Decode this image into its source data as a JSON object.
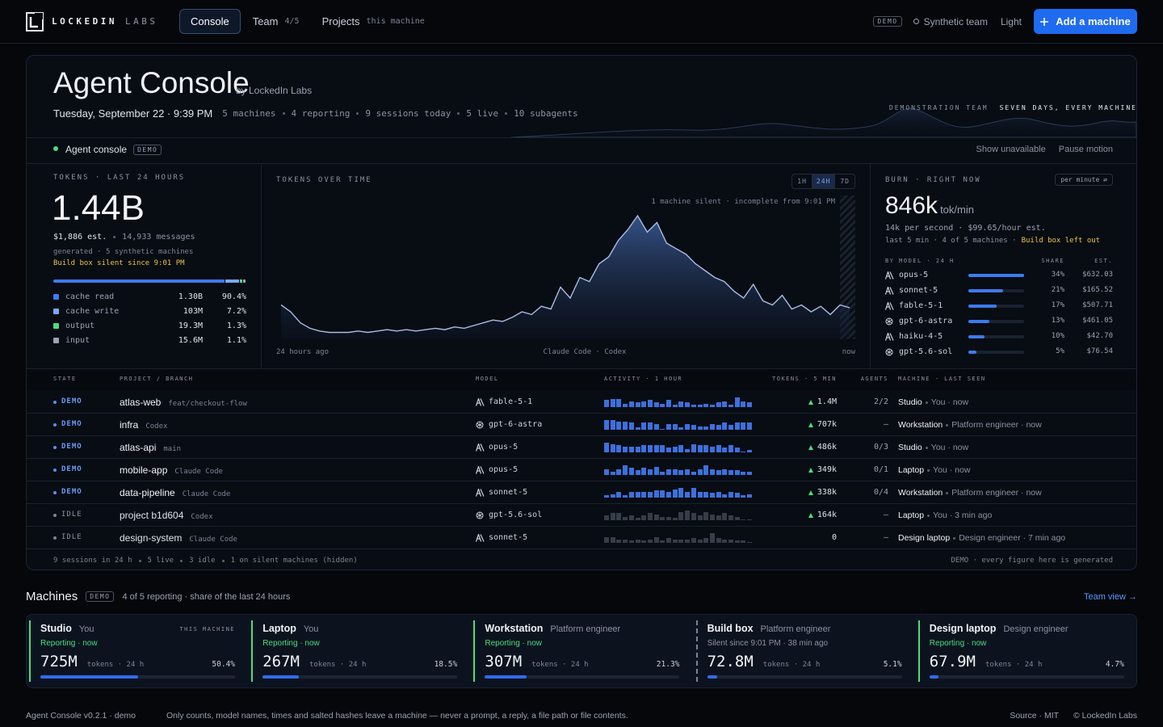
{
  "nav": {
    "brand": "LOCKEDIN",
    "brand_sub": "LABS",
    "tabs": [
      {
        "label": "Console",
        "active": true
      },
      {
        "label": "Team",
        "meta": "4/5"
      },
      {
        "label": "Projects",
        "meta": "this machine"
      }
    ],
    "badge": "DEMO",
    "team": "Synthetic team",
    "theme": "Light",
    "action": "Add a machine"
  },
  "header": {
    "title": "Agent Console",
    "by": "by LockedIn Labs",
    "date": "Tuesday, September 22 · 9:39 PM",
    "stats": [
      "5 machines",
      "4 reporting",
      "9 sessions today",
      "5 live",
      "10 subagents"
    ],
    "tag": "DEMONSTRATION TEAM",
    "tag_strong": "SEVEN DAYS, EVERY MACHINE"
  },
  "bar": {
    "label": "Agent console",
    "badge": "DEMO",
    "actions": [
      "Show unavailable",
      "Pause motion"
    ]
  },
  "tokens": {
    "heading": "TOKENS · LAST 24 HOURS",
    "total": "1.44B",
    "cost": "$1,886 est.",
    "messages": "14,933 messages",
    "generated": "generated · 5 synthetic machines",
    "warning": "Build box silent since 9:01 PM",
    "breakdown": [
      {
        "name": "cache read",
        "value": "1.30B",
        "share": 90.4,
        "share_label": "90.4%",
        "color": "#3b7bf0"
      },
      {
        "name": "cache write",
        "value": "103M",
        "share": 7.2,
        "share_label": "7.2%",
        "color": "#7aa8f5"
      },
      {
        "name": "output",
        "value": "19.3M",
        "share": 1.3,
        "share_label": "1.3%",
        "color": "#4ade80"
      },
      {
        "name": "input",
        "value": "15.6M",
        "share": 1.1,
        "share_label": "1.1%",
        "color": "#9aa3b2"
      }
    ]
  },
  "chart": {
    "heading": "TOKENS OVER TIME",
    "ranges": [
      {
        "label": "1H"
      },
      {
        "label": "24H",
        "active": true
      },
      {
        "label": "7D"
      }
    ],
    "note": "1 machine silent · incomplete from 9:01 PM",
    "x_start": "24 hours ago",
    "x_mid": "Claude Code · Codex",
    "x_end": "now",
    "values": [
      25,
      20,
      12,
      8,
      6,
      5,
      5,
      5,
      6,
      5,
      6,
      7,
      6,
      7,
      6,
      7,
      8,
      7,
      9,
      8,
      10,
      12,
      14,
      13,
      16,
      20,
      18,
      24,
      22,
      38,
      30,
      45,
      42,
      55,
      60,
      72,
      80,
      90,
      78,
      85,
      70,
      66,
      62,
      55,
      50,
      45,
      42,
      35,
      30,
      40,
      28,
      25,
      32,
      22,
      25,
      20,
      24,
      18,
      25,
      23
    ]
  },
  "burn": {
    "heading": "BURN · RIGHT NOW",
    "unit_select": "per minute ⇄",
    "rate": "846k",
    "unit": "tok/min",
    "line1": "14k per second · $99.65/hour est.",
    "line2": "last 5 min · 4 of 5 machines ·",
    "warning": "Build box left out",
    "col_model": "BY MODEL · 24 H",
    "col_share": "SHARE",
    "col_est": "EST.",
    "models": [
      {
        "name": "opus-5",
        "icon": "spark",
        "share": 34,
        "share_label": "34%",
        "est": "$632.03"
      },
      {
        "name": "sonnet-5",
        "icon": "spark",
        "share": 21,
        "share_label": "21%",
        "est": "$165.52"
      },
      {
        "name": "fable-5-1",
        "icon": "spark",
        "share": 17,
        "share_label": "17%",
        "est": "$507.71"
      },
      {
        "name": "gpt-6-astra",
        "icon": "knot",
        "share": 13,
        "share_label": "13%",
        "est": "$461.05"
      },
      {
        "name": "haiku-4-5",
        "icon": "spark",
        "share": 10,
        "share_label": "10%",
        "est": "$42.70"
      },
      {
        "name": "gpt-5.6-sol",
        "icon": "knot",
        "share": 5,
        "share_label": "5%",
        "est": "$76.54"
      }
    ]
  },
  "table": {
    "columns": [
      "STATE",
      "PROJECT / BRANCH",
      "MODEL",
      "ACTIVITY · 1 HOUR",
      "TOKENS · 5 MIN",
      "AGENTS",
      "MACHINE · LAST SEEN"
    ],
    "rows": [
      {
        "state": "DEMO",
        "live": true,
        "project": "atlas-web",
        "branch": "feat/checkout-flow",
        "model": "fable-5-1",
        "icon": "spark",
        "activity": [
          6,
          7,
          7,
          3,
          5,
          4,
          5,
          6,
          4,
          3,
          6,
          2,
          5,
          4,
          2,
          2,
          3,
          2,
          4,
          5,
          2,
          8,
          5,
          4
        ],
        "tokens": "1.4M",
        "up": true,
        "agents": "2/2",
        "machine": "Studio",
        "seen": "You · now"
      },
      {
        "state": "DEMO",
        "live": true,
        "project": "infra",
        "branch": "Codex",
        "model": "gpt-6-astra",
        "icon": "knot",
        "activity": [
          8,
          8,
          7,
          7,
          6,
          2,
          6,
          6,
          5,
          1,
          5,
          5,
          2,
          5,
          4,
          3,
          3,
          5,
          4,
          6,
          4,
          6,
          6,
          6
        ],
        "tokens": "707k",
        "up": true,
        "agents": "—",
        "machine": "Workstation",
        "seen": "Platform engineer · now"
      },
      {
        "state": "DEMO",
        "live": true,
        "project": "atlas-api",
        "branch": "main",
        "model": "opus-5",
        "icon": "spark",
        "activity": [
          8,
          7,
          6,
          5,
          5,
          5,
          6,
          6,
          6,
          6,
          4,
          5,
          6,
          3,
          7,
          6,
          6,
          5,
          6,
          4,
          6,
          4,
          1,
          2
        ],
        "tokens": "486k",
        "up": true,
        "agents": "0/3",
        "machine": "Studio",
        "seen": "You · now"
      },
      {
        "state": "DEMO",
        "live": true,
        "project": "mobile-app",
        "branch": "Claude Code",
        "model": "opus-5",
        "icon": "spark",
        "activity": [
          5,
          3,
          5,
          8,
          6,
          4,
          6,
          5,
          7,
          3,
          5,
          5,
          4,
          5,
          3,
          5,
          8,
          5,
          4,
          5,
          4,
          4,
          3,
          3
        ],
        "tokens": "349k",
        "up": true,
        "agents": "0/1",
        "machine": "Laptop",
        "seen": "You · now"
      },
      {
        "state": "DEMO",
        "live": true,
        "project": "data-pipeline",
        "branch": "Claude Code",
        "model": "sonnet-5",
        "icon": "spark",
        "activity": [
          2,
          3,
          5,
          2,
          5,
          5,
          5,
          5,
          6,
          6,
          5,
          7,
          8,
          5,
          8,
          5,
          5,
          4,
          5,
          3,
          5,
          4,
          2,
          3
        ],
        "tokens": "338k",
        "up": true,
        "agents": "0/4",
        "machine": "Workstation",
        "seen": "Platform engineer · now"
      },
      {
        "state": "IDLE",
        "live": false,
        "project": "project b1d604",
        "branch": "Codex",
        "model": "gpt-5.6-sol",
        "icon": "knot",
        "activity": [
          4,
          6,
          6,
          3,
          4,
          2,
          4,
          6,
          5,
          3,
          3,
          2,
          7,
          8,
          6,
          4,
          7,
          5,
          4,
          6,
          4,
          3,
          1,
          1
        ],
        "tokens": "164k",
        "up": true,
        "agents": "—",
        "machine": "Laptop",
        "seen": "You · 3 min ago"
      },
      {
        "state": "IDLE",
        "live": false,
        "project": "design-system",
        "branch": "Claude Code",
        "model": "sonnet-5",
        "icon": "spark",
        "activity": [
          5,
          5,
          3,
          3,
          2,
          3,
          2,
          3,
          5,
          2,
          4,
          3,
          3,
          3,
          4,
          3,
          4,
          8,
          4,
          3,
          3,
          2,
          2,
          1
        ],
        "tokens": "0",
        "up": false,
        "agents": "—",
        "machine": "Design laptop",
        "seen": "Design engineer · 7 min ago"
      }
    ],
    "footer": [
      "9 sessions in 24 h",
      "5 live",
      "3 idle",
      "1 on silent machines (hidden)"
    ],
    "footer_right": "DEMO · every figure here is generated"
  },
  "machines": {
    "title": "Machines",
    "badge": "DEMO",
    "summary": "4 of 5 reporting · share of the last 24 hours",
    "link": "Team view →",
    "cards": [
      {
        "name": "Studio",
        "owner": "You",
        "tag": "THIS MACHINE",
        "status": "Reporting · now",
        "reporting": true,
        "tokens": "725M",
        "unit": "tokens · 24 h",
        "share": 50.4,
        "share_label": "50.4%"
      },
      {
        "name": "Laptop",
        "owner": "You",
        "status": "Reporting · now",
        "reporting": true,
        "tokens": "267M",
        "unit": "tokens · 24 h",
        "share": 18.5,
        "share_label": "18.5%"
      },
      {
        "name": "Workstation",
        "owner": "Platform engineer",
        "status": "Reporting · now",
        "reporting": true,
        "tokens": "307M",
        "unit": "tokens · 24 h",
        "share": 21.3,
        "share_label": "21.3%"
      },
      {
        "name": "Build box",
        "owner": "Platform engineer",
        "status": "Silent since 9:01 PM · 38 min ago",
        "reporting": false,
        "tokens": "72.8M",
        "unit": "tokens · 24 h",
        "share": 5.1,
        "share_label": "5.1%"
      },
      {
        "name": "Design laptop",
        "owner": "Design engineer",
        "status": "Reporting · now",
        "reporting": true,
        "tokens": "67.9M",
        "unit": "tokens · 24 h",
        "share": 4.7,
        "share_label": "4.7%"
      }
    ]
  },
  "footer": {
    "version": "Agent Console v0.2.1 · demo",
    "note": "Only counts, model names, times and salted hashes leave a machine — never a prompt, a reply, a file path or file contents.",
    "links": [
      "Source · MIT",
      "© LockedIn Labs"
    ]
  }
}
